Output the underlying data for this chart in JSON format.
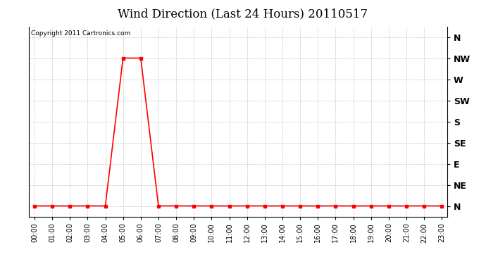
{
  "title": "Wind Direction (Last 24 Hours) 20110517",
  "copyright_text": "Copyright 2011 Cartronics.com",
  "background_color": "#ffffff",
  "plot_bg_color": "#ffffff",
  "line_color": "#ff0000",
  "grid_color": "#c8c8c8",
  "ytick_labels": [
    "N",
    "NE",
    "E",
    "SE",
    "S",
    "SW",
    "W",
    "NW",
    "N"
  ],
  "ytick_values": [
    0,
    1,
    2,
    3,
    4,
    5,
    6,
    7,
    8
  ],
  "x_hours": [
    0,
    1,
    2,
    3,
    4,
    5,
    6,
    7,
    8,
    9,
    10,
    11,
    12,
    13,
    14,
    15,
    16,
    17,
    18,
    19,
    20,
    21,
    22,
    23
  ],
  "y_values": [
    0,
    0,
    0,
    0,
    0,
    7,
    7,
    0,
    0,
    0,
    0,
    0,
    0,
    0,
    0,
    0,
    0,
    0,
    0,
    0,
    0,
    0,
    0,
    0
  ],
  "marker_size": 3,
  "marker_style": "s",
  "line_width": 1.2,
  "title_fontsize": 12,
  "tick_fontsize": 7,
  "ylabel_fontsize": 9,
  "copyright_fontsize": 6.5,
  "figsize": [
    6.9,
    3.75
  ],
  "dpi": 100
}
